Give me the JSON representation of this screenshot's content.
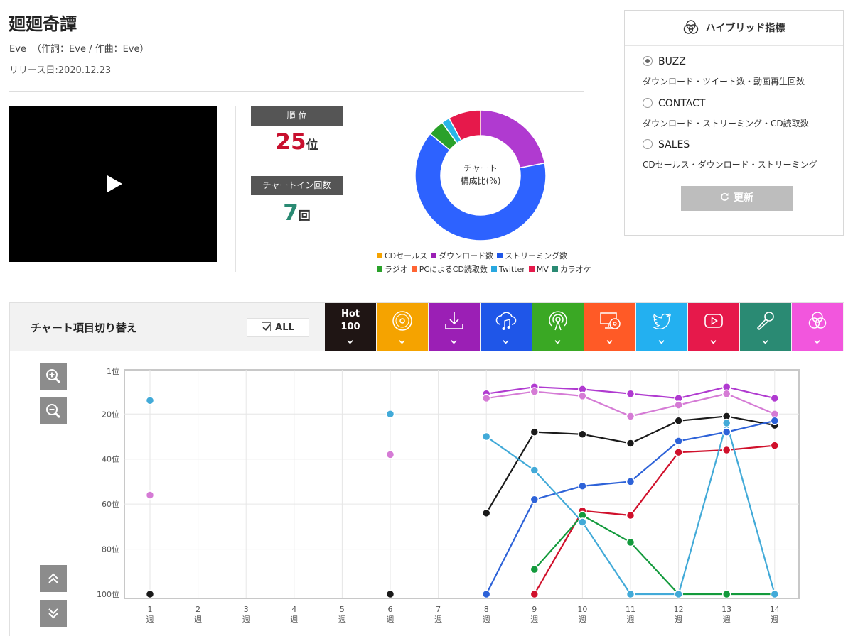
{
  "song": {
    "title": "廻廻奇譚",
    "artist": "Eve",
    "credits": "（作詞：Eve / 作曲：Eve）",
    "release": "リリース日:2020.12.23"
  },
  "stats": {
    "rank_label": "順 位",
    "rank_value": "25",
    "rank_unit": "位",
    "chartin_label": "チャートイン回数",
    "chartin_value": "7",
    "chartin_unit": "回"
  },
  "composition": {
    "caption_line1": "チャート",
    "caption_line2": "構成比(%)",
    "legend_row1": [
      {
        "label": "CDセールス",
        "color": "#f5a300"
      },
      {
        "label": "ダウンロード数",
        "color": "#9b1fb5"
      },
      {
        "label": "ストリーミング数",
        "color": "#1f56e8"
      }
    ],
    "legend_row2": [
      {
        "label": "ラジオ",
        "color": "#2aa12a"
      },
      {
        "label": "PCによるCD読取数",
        "color": "#ff6433"
      },
      {
        "label": "Twitter",
        "color": "#29a8e0"
      },
      {
        "label": "MV",
        "color": "#e6194b"
      },
      {
        "label": "カラオケ",
        "color": "#2a8a73"
      }
    ],
    "slices": [
      {
        "name": "ダウンロード数",
        "value": 22,
        "color": "#b03ad0"
      },
      {
        "name": "ストリーミング数",
        "value": 64,
        "color": "#2d62ff"
      },
      {
        "name": "ラジオ",
        "value": 4,
        "color": "#2aa12a"
      },
      {
        "name": "Twitter",
        "value": 2,
        "color": "#29b6e8"
      },
      {
        "name": "MV",
        "value": 8,
        "color": "#e6194b"
      }
    ]
  },
  "hybrid": {
    "title": "ハイブリッド指標",
    "options": [
      {
        "label": "BUZZ",
        "desc": "ダウンロード・ツイート数・動画再生回数",
        "selected": true
      },
      {
        "label": "CONTACT",
        "desc": "ダウンロード・ストリーミング・CD読取数",
        "selected": false
      },
      {
        "label": "SALES",
        "desc": "CDセールス・ダウンロード・ストリーミング",
        "selected": false
      }
    ],
    "update_label": "更新"
  },
  "toggle": {
    "title": "チャート項目切り替え",
    "all_label": "ALL",
    "hot_line1": "Hot",
    "hot_line2": "100",
    "tiles": [
      {
        "name": "hot100",
        "color": "#1f1514",
        "icon": "hot100"
      },
      {
        "name": "cd-sales",
        "color": "#f5a300",
        "icon": "disc-icon"
      },
      {
        "name": "download",
        "color": "#9b1fb5",
        "icon": "download-icon"
      },
      {
        "name": "streaming",
        "color": "#1f56e8",
        "icon": "cloud-music-icon"
      },
      {
        "name": "radio",
        "color": "#3aa824",
        "icon": "broadcast-icon"
      },
      {
        "name": "pc-cd-read",
        "color": "#ff5a26",
        "icon": "monitor-disc-icon"
      },
      {
        "name": "twitter",
        "color": "#23b0f0",
        "icon": "twitter-bird-icon"
      },
      {
        "name": "mv",
        "color": "#e6194b",
        "icon": "youtube-play-icon"
      },
      {
        "name": "karaoke",
        "color": "#2a8a73",
        "icon": "microphone-icon"
      },
      {
        "name": "hybrid",
        "color": "#f256dd",
        "icon": "hybrid-circles-icon"
      }
    ]
  },
  "chart_data": {
    "type": "line",
    "x_labels": [
      "1週",
      "2週",
      "3週",
      "4週",
      "5週",
      "6週",
      "7週",
      "8週",
      "9週",
      "10週",
      "11週",
      "12週",
      "13週",
      "14週"
    ],
    "x": [
      1,
      2,
      3,
      4,
      5,
      6,
      7,
      8,
      9,
      10,
      11,
      12,
      13,
      14
    ],
    "y_ticks": [
      "1位",
      "20位",
      "40位",
      "60位",
      "80位",
      "100位"
    ],
    "y_tick_values": [
      1,
      20,
      40,
      60,
      80,
      100
    ],
    "ylim": [
      100,
      1
    ],
    "y_inverted": true,
    "grid": true,
    "series": [
      {
        "color": "#1a1a1a",
        "segments": [
          [
            [
              1,
              100
            ]
          ],
          [
            [
              6,
              100
            ]
          ],
          [
            [
              8,
              64
            ],
            [
              9,
              28
            ],
            [
              10,
              29
            ],
            [
              11,
              33
            ],
            [
              12,
              23
            ],
            [
              13,
              21
            ],
            [
              14,
              25
            ]
          ]
        ]
      },
      {
        "color": "#b03ad0",
        "segments": [
          [
            [
              8,
              11
            ],
            [
              9,
              8
            ],
            [
              10,
              9
            ],
            [
              11,
              11
            ],
            [
              12,
              13
            ],
            [
              13,
              8
            ],
            [
              14,
              13
            ]
          ]
        ]
      },
      {
        "color": "#d57bd5",
        "segments": [
          [
            [
              1,
              56
            ]
          ],
          [
            [
              6,
              38
            ]
          ],
          [
            [
              8,
              13
            ],
            [
              9,
              10
            ],
            [
              10,
              12
            ],
            [
              11,
              21
            ],
            [
              12,
              16
            ],
            [
              13,
              11
            ],
            [
              14,
              20
            ]
          ]
        ]
      },
      {
        "color": "#2d62d8",
        "segments": [
          [
            [
              8,
              100
            ],
            [
              9,
              58
            ],
            [
              10,
              52
            ],
            [
              11,
              50
            ],
            [
              12,
              32
            ],
            [
              13,
              28
            ],
            [
              14,
              23
            ]
          ]
        ]
      },
      {
        "color": "#d0102b",
        "segments": [
          [
            [
              9,
              100
            ],
            [
              10,
              63
            ],
            [
              11,
              65
            ],
            [
              12,
              37
            ],
            [
              13,
              36
            ],
            [
              14,
              34
            ]
          ]
        ]
      },
      {
        "color": "#139a3c",
        "segments": [
          [
            [
              9,
              89
            ],
            [
              10,
              65
            ],
            [
              11,
              77
            ],
            [
              12,
              100
            ],
            [
              13,
              100
            ],
            [
              14,
              100
            ]
          ]
        ]
      },
      {
        "color": "#42aad8",
        "segments": [
          [
            [
              1,
              14
            ]
          ],
          [
            [
              6,
              20
            ]
          ],
          [
            [
              8,
              30
            ],
            [
              9,
              45
            ],
            [
              10,
              68
            ],
            [
              11,
              100
            ],
            [
              12,
              100
            ],
            [
              13,
              24
            ],
            [
              14,
              100
            ]
          ]
        ]
      }
    ]
  }
}
